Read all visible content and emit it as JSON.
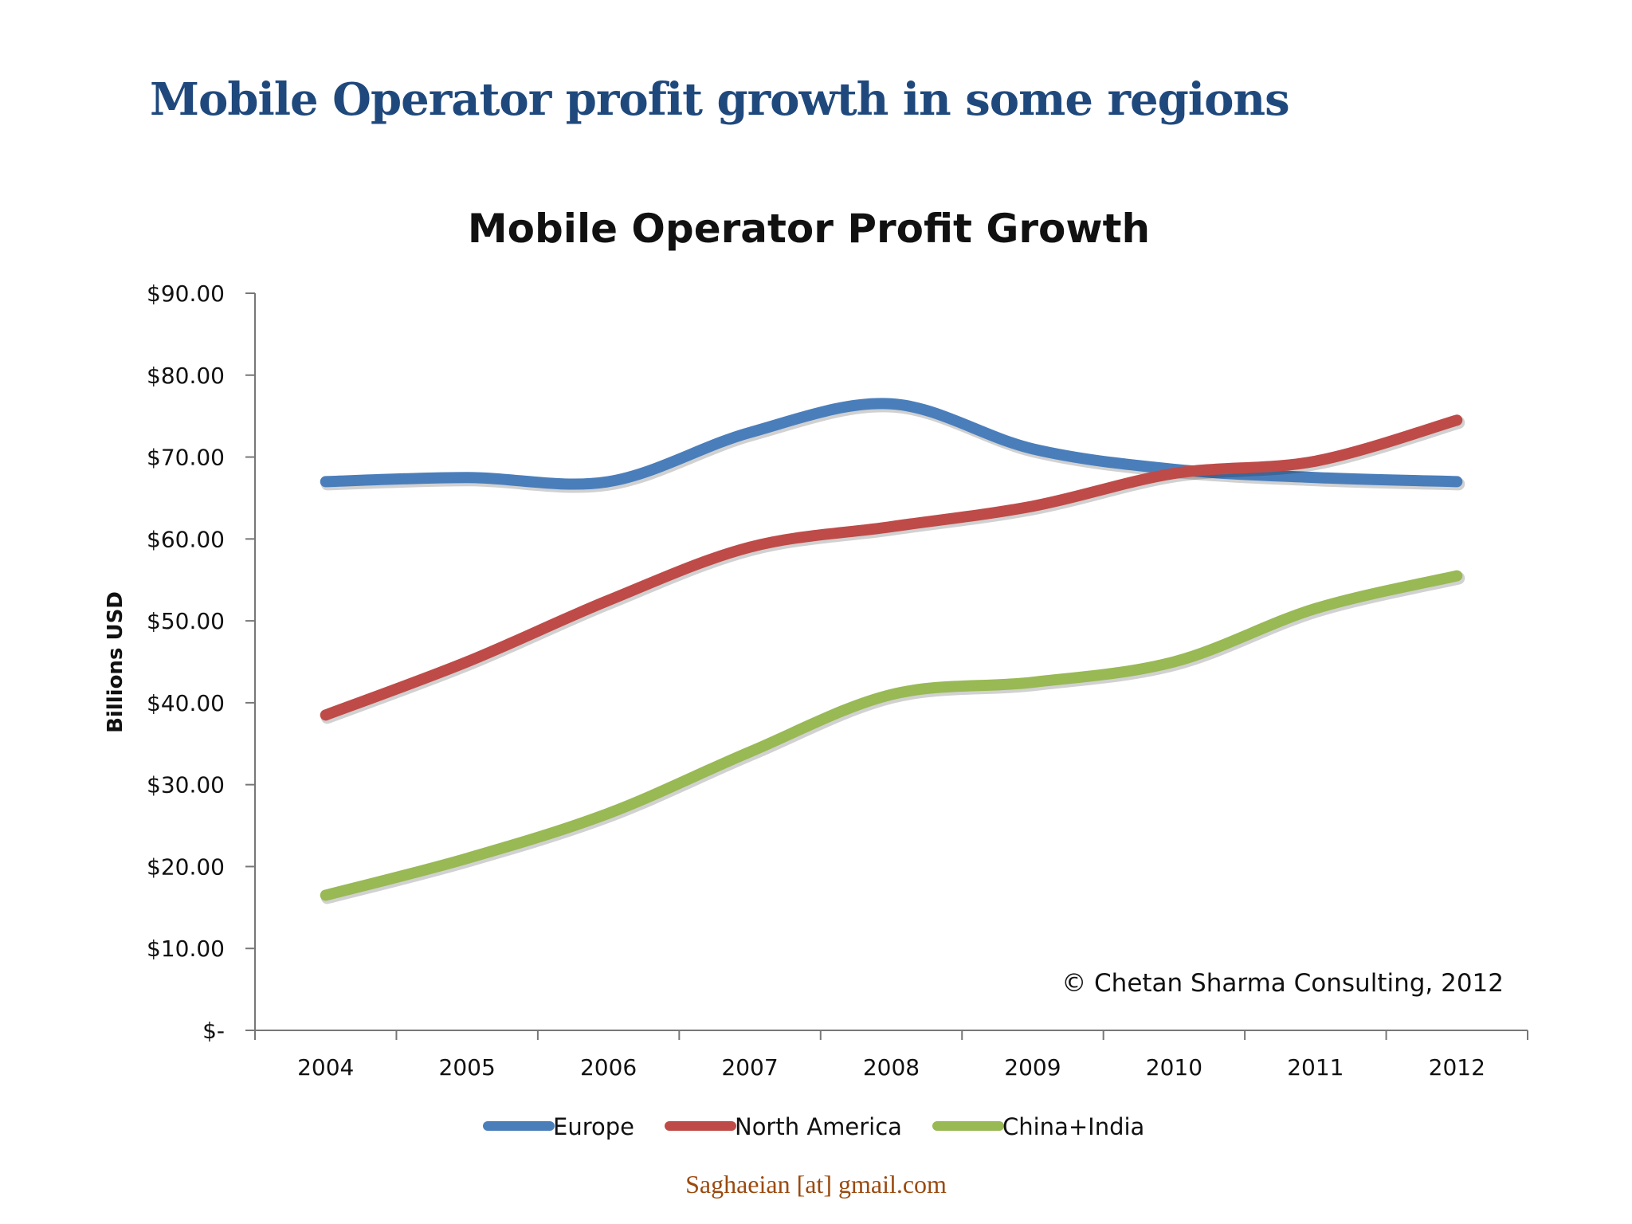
{
  "slide": {
    "title": "Mobile Operator profit growth in some regions",
    "footer": "Saghaeian [at] gmail.com"
  },
  "chart_data": {
    "type": "line",
    "title": "Mobile Operator Profit Growth",
    "ylabel": "Billions USD",
    "xlabel": "",
    "categories": [
      "2004",
      "2005",
      "2006",
      "2007",
      "2008",
      "2009",
      "2010",
      "2011",
      "2012"
    ],
    "yticks": [
      "$-",
      "$10.00",
      "$20.00",
      "$30.00",
      "$40.00",
      "$50.00",
      "$60.00",
      "$70.00",
      "$80.00",
      "$90.00"
    ],
    "ylim": [
      0,
      90
    ],
    "grid": false,
    "legend_position": "bottom",
    "annotation": "© Chetan Sharma Consulting, 2012",
    "series": [
      {
        "name": "Europe",
        "color": "#4a7ebb",
        "values": [
          67,
          67.5,
          67,
          73,
          76.5,
          71,
          68.5,
          67.5,
          67
        ]
      },
      {
        "name": "North America",
        "color": "#be4b48",
        "values": [
          38.5,
          45,
          52.5,
          59,
          61.5,
          64,
          68,
          69.5,
          74.5
        ]
      },
      {
        "name": "China+India",
        "color": "#98b954",
        "values": [
          16.5,
          21,
          26.5,
          34,
          41,
          42.5,
          45,
          51.5,
          55.5
        ]
      }
    ]
  }
}
